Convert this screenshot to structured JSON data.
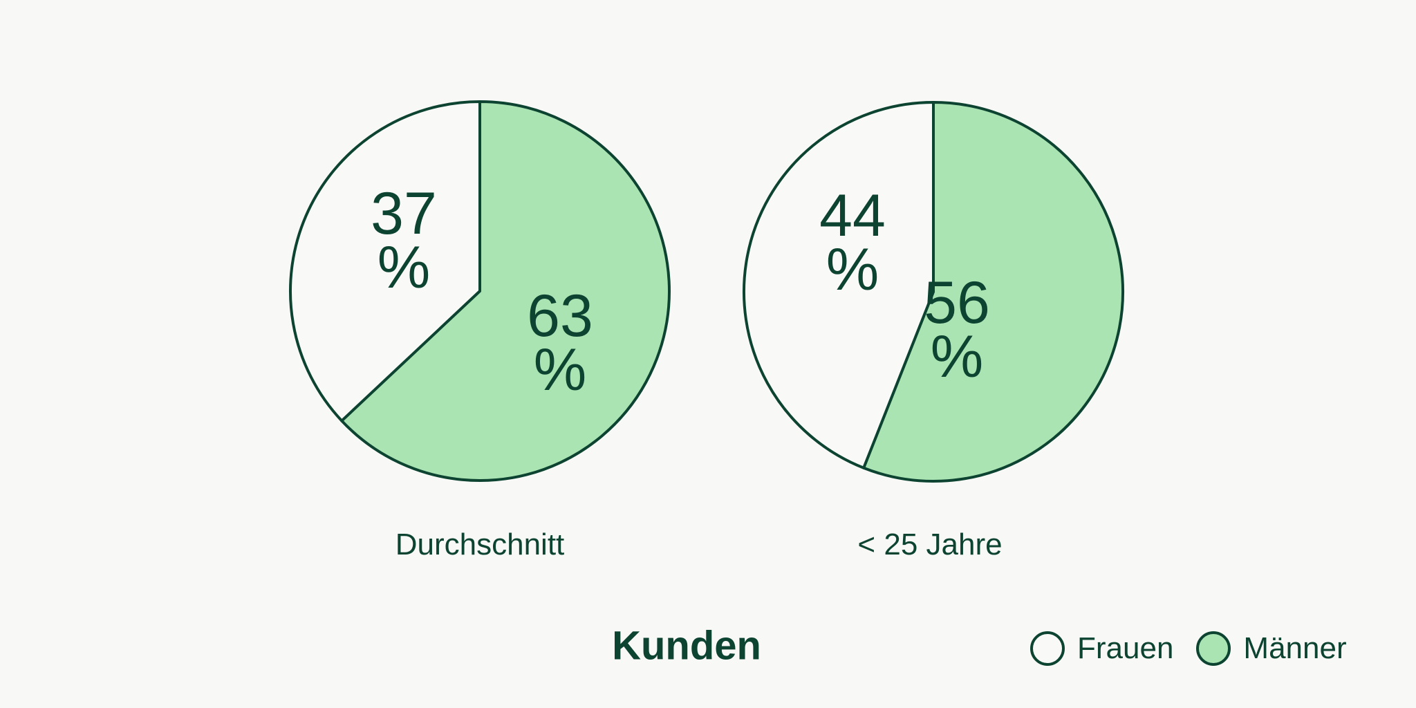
{
  "page": {
    "background": "#f8f8f6"
  },
  "colors": {
    "ink": "#0d4331",
    "maenner_fill": "#abe4b3",
    "frauen_fill": "#f9faf8"
  },
  "title": {
    "text": "Kunden"
  },
  "legend": {
    "items": [
      {
        "label": "Frauen",
        "color": "#f9faf8"
      },
      {
        "label": "Männer",
        "color": "#abe4b3"
      }
    ]
  },
  "chart_data": [
    {
      "type": "pie",
      "title": "Durchschnitt",
      "unit": "%",
      "start_angle_deg": 0,
      "direction": "clockwise",
      "slices": [
        {
          "label": "Männer",
          "value": 63,
          "color": "#abe4b3"
        },
        {
          "label": "Frauen",
          "value": 37,
          "color": "#f9faf8"
        }
      ]
    },
    {
      "type": "pie",
      "title": "< 25 Jahre",
      "unit": "%",
      "start_angle_deg": 0,
      "direction": "clockwise",
      "slices": [
        {
          "label": "Männer",
          "value": 56,
          "color": "#abe4b3"
        },
        {
          "label": "Frauen",
          "value": 44,
          "color": "#f9faf8"
        }
      ]
    }
  ]
}
